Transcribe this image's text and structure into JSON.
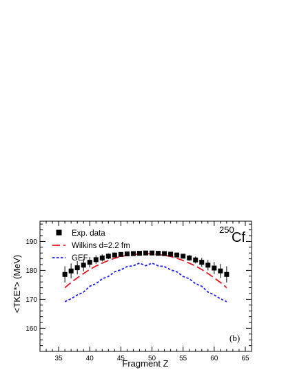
{
  "chart_data": {
    "type": "scatter",
    "xlabel": "Fragment Z",
    "ylabel": "<TKE*> (MeV)",
    "xlim": [
      32,
      66
    ],
    "ylim": [
      152,
      197
    ],
    "xticks": [
      35,
      40,
      45,
      50,
      55,
      60,
      65
    ],
    "yticks": [
      160,
      170,
      180,
      190
    ],
    "grid": false,
    "legend_position": "top-left",
    "nucleus_mass": "250",
    "nucleus_symbol": "Cf",
    "panel_label": "(b)",
    "series": [
      {
        "name": "Exp. data",
        "style": "square-markers-with-error-bars",
        "color": "#000000",
        "x": [
          36,
          37,
          38,
          39,
          40,
          41,
          42,
          43,
          44,
          45,
          46,
          47,
          48,
          49,
          50,
          51,
          52,
          53,
          54,
          55,
          56,
          57,
          58,
          59,
          60,
          61,
          62
        ],
        "y": [
          178.6,
          179.8,
          180.9,
          181.8,
          182.8,
          183.7,
          184.3,
          184.9,
          185.3,
          185.5,
          185.7,
          185.8,
          185.9,
          186.0,
          186.0,
          185.9,
          185.8,
          185.6,
          185.3,
          184.9,
          184.3,
          183.6,
          182.8,
          181.8,
          180.8,
          179.8,
          178.6
        ],
        "err": [
          2.8,
          2.6,
          2.3,
          2.1,
          1.8,
          1.5,
          1.2,
          1.0,
          0.8,
          0.6,
          0.5,
          0.4,
          0.4,
          0.4,
          0.4,
          0.4,
          0.4,
          0.5,
          0.6,
          0.8,
          1.0,
          1.2,
          1.5,
          1.8,
          2.1,
          2.4,
          2.8
        ]
      },
      {
        "name": "Wilkins d=2.2 fm",
        "style": "long-dashed-line",
        "color": "#e8141c",
        "x": [
          36,
          37,
          38,
          39,
          40,
          41,
          42,
          43,
          44,
          45,
          46,
          47,
          48,
          49,
          50,
          51,
          52,
          53,
          54,
          55,
          56,
          57,
          58,
          59,
          60,
          61,
          62
        ],
        "y": [
          174.0,
          175.8,
          177.4,
          178.9,
          180.3,
          181.5,
          182.5,
          183.4,
          184.2,
          184.8,
          185.2,
          185.5,
          185.7,
          185.8,
          185.7,
          185.5,
          185.2,
          184.8,
          184.2,
          183.4,
          182.5,
          181.5,
          180.3,
          178.9,
          177.4,
          175.8,
          174.0
        ]
      },
      {
        "name": "GEF",
        "style": "short-dashed-line",
        "color": "#1a1aff",
        "x": [
          36,
          37,
          38,
          39,
          40,
          41,
          42,
          43,
          44,
          45,
          46,
          47,
          48,
          49,
          50,
          51,
          52,
          53,
          54,
          55,
          56,
          57,
          58,
          59,
          60,
          61,
          62
        ],
        "y": [
          169.2,
          170.2,
          171.5,
          172.5,
          174.5,
          175.4,
          177.1,
          177.9,
          179.5,
          180.2,
          181.3,
          181.6,
          182.5,
          181.6,
          182.5,
          181.6,
          181.3,
          180.2,
          179.5,
          177.9,
          177.1,
          175.4,
          174.5,
          172.5,
          171.5,
          170.2,
          169.2
        ]
      }
    ]
  }
}
